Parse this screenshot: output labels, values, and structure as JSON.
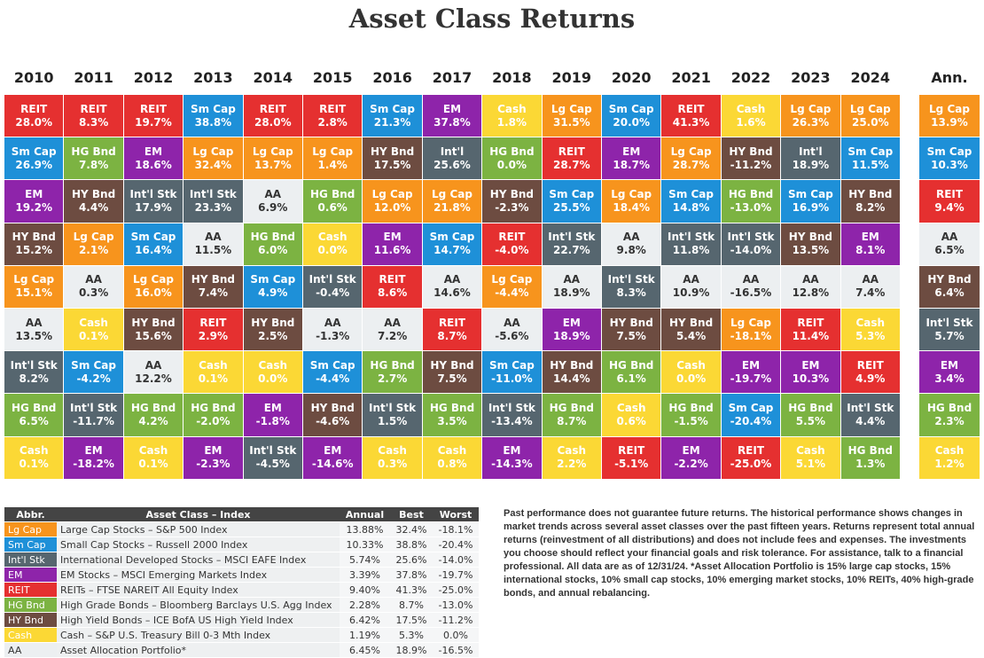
{
  "header": {
    "title": "Asset Class Returns"
  },
  "columns": [
    {
      "year": "2010",
      "cells": [
        {
          "label": "REIT",
          "value": "28.0%"
        },
        {
          "label": "Sm Cap",
          "value": "26.9%"
        },
        {
          "label": "EM",
          "value": "19.2%"
        },
        {
          "label": "HY Bnd",
          "value": "15.2%"
        },
        {
          "label": "Lg Cap",
          "value": "15.1%"
        },
        {
          "label": "AA",
          "value": "13.5%"
        },
        {
          "label": "Int'l Stk",
          "value": "8.2%"
        },
        {
          "label": "HG Bnd",
          "value": "6.5%"
        },
        {
          "label": "Cash",
          "value": "0.1%"
        }
      ]
    },
    {
      "year": "2011",
      "cells": [
        {
          "label": "REIT",
          "value": "8.3%"
        },
        {
          "label": "HG Bnd",
          "value": "7.8%"
        },
        {
          "label": "HY Bnd",
          "value": "4.4%"
        },
        {
          "label": "Lg Cap",
          "value": "2.1%"
        },
        {
          "label": "AA",
          "value": "0.3%"
        },
        {
          "label": "Cash",
          "value": "0.1%"
        },
        {
          "label": "Sm Cap",
          "value": "-4.2%"
        },
        {
          "label": "Int'l Stk",
          "value": "-11.7%"
        },
        {
          "label": "EM",
          "value": "-18.2%"
        }
      ]
    },
    {
      "year": "2012",
      "cells": [
        {
          "label": "REIT",
          "value": "19.7%"
        },
        {
          "label": "EM",
          "value": "18.6%"
        },
        {
          "label": "Int'l Stk",
          "value": "17.9%"
        },
        {
          "label": "Sm Cap",
          "value": "16.4%"
        },
        {
          "label": "Lg Cap",
          "value": "16.0%"
        },
        {
          "label": "HY Bnd",
          "value": "15.6%"
        },
        {
          "label": "AA",
          "value": "12.2%"
        },
        {
          "label": "HG Bnd",
          "value": "4.2%"
        },
        {
          "label": "Cash",
          "value": "0.1%"
        }
      ]
    },
    {
      "year": "2013",
      "cells": [
        {
          "label": "Sm Cap",
          "value": "38.8%"
        },
        {
          "label": "Lg Cap",
          "value": "32.4%"
        },
        {
          "label": "Int'l Stk",
          "value": "23.3%"
        },
        {
          "label": "AA",
          "value": "11.5%"
        },
        {
          "label": "HY Bnd",
          "value": "7.4%"
        },
        {
          "label": "REIT",
          "value": "2.9%"
        },
        {
          "label": "Cash",
          "value": "0.1%"
        },
        {
          "label": "HG Bnd",
          "value": "-2.0%"
        },
        {
          "label": "EM",
          "value": "-2.3%"
        }
      ]
    },
    {
      "year": "2014",
      "cells": [
        {
          "label": "REIT",
          "value": "28.0%"
        },
        {
          "label": "Lg Cap",
          "value": "13.7%"
        },
        {
          "label": "AA",
          "value": "6.9%"
        },
        {
          "label": "HG Bnd",
          "value": "6.0%"
        },
        {
          "label": "Sm Cap",
          "value": "4.9%"
        },
        {
          "label": "HY Bnd",
          "value": "2.5%"
        },
        {
          "label": "Cash",
          "value": "0.0%"
        },
        {
          "label": "EM",
          "value": "-1.8%"
        },
        {
          "label": "Int'l Stk",
          "value": "-4.5%"
        }
      ]
    },
    {
      "year": "2015",
      "cells": [
        {
          "label": "REIT",
          "value": "2.8%"
        },
        {
          "label": "Lg Cap",
          "value": "1.4%"
        },
        {
          "label": "HG Bnd",
          "value": "0.6%"
        },
        {
          "label": "Cash",
          "value": "0.0%"
        },
        {
          "label": "Int'l Stk",
          "value": "-0.4%"
        },
        {
          "label": "AA",
          "value": "-1.3%"
        },
        {
          "label": "Sm Cap",
          "value": "-4.4%"
        },
        {
          "label": "HY Bnd",
          "value": "-4.6%"
        },
        {
          "label": "EM",
          "value": "-14.6%"
        }
      ]
    },
    {
      "year": "2016",
      "cells": [
        {
          "label": "Sm Cap",
          "value": "21.3%"
        },
        {
          "label": "HY Bnd",
          "value": "17.5%"
        },
        {
          "label": "Lg Cap",
          "value": "12.0%"
        },
        {
          "label": "EM",
          "value": "11.6%"
        },
        {
          "label": "REIT",
          "value": "8.6%"
        },
        {
          "label": "AA",
          "value": "7.2%"
        },
        {
          "label": "HG Bnd",
          "value": "2.7%"
        },
        {
          "label": "Int'l Stk",
          "value": "1.5%"
        },
        {
          "label": "Cash",
          "value": "0.3%"
        }
      ]
    },
    {
      "year": "2017",
      "cells": [
        {
          "label": "EM",
          "value": "37.8%"
        },
        {
          "label": "Int'l",
          "value": "25.6%"
        },
        {
          "label": "Lg Cap",
          "value": "21.8%"
        },
        {
          "label": "Sm Cap",
          "value": "14.7%"
        },
        {
          "label": "AA",
          "value": "14.6%"
        },
        {
          "label": "REIT",
          "value": "8.7%"
        },
        {
          "label": "HY Bnd",
          "value": "7.5%"
        },
        {
          "label": "HG Bnd",
          "value": "3.5%"
        },
        {
          "label": "Cash",
          "value": "0.8%"
        }
      ]
    },
    {
      "year": "2018",
      "cells": [
        {
          "label": "Cash",
          "value": "1.8%"
        },
        {
          "label": "HG Bnd",
          "value": "0.0%"
        },
        {
          "label": "HY Bnd",
          "value": "-2.3%"
        },
        {
          "label": "REIT",
          "value": "-4.0%"
        },
        {
          "label": "Lg Cap",
          "value": "-4.4%"
        },
        {
          "label": "AA",
          "value": "-5.6%"
        },
        {
          "label": "Sm Cap",
          "value": "-11.0%"
        },
        {
          "label": "Int'l Stk",
          "value": "-13.4%"
        },
        {
          "label": "EM",
          "value": "-14.3%"
        }
      ]
    },
    {
      "year": "2019",
      "cells": [
        {
          "label": "Lg Cap",
          "value": "31.5%"
        },
        {
          "label": "REIT",
          "value": "28.7%"
        },
        {
          "label": "Sm Cap",
          "value": "25.5%"
        },
        {
          "label": "Int'l Stk",
          "value": "22.7%"
        },
        {
          "label": "AA",
          "value": "18.9%"
        },
        {
          "label": "EM",
          "value": "18.9%"
        },
        {
          "label": "HY Bnd",
          "value": "14.4%"
        },
        {
          "label": "HG Bnd",
          "value": "8.7%"
        },
        {
          "label": "Cash",
          "value": "2.2%"
        }
      ]
    },
    {
      "year": "2020",
      "cells": [
        {
          "label": "Sm Cap",
          "value": "20.0%"
        },
        {
          "label": "EM",
          "value": "18.7%"
        },
        {
          "label": "Lg Cap",
          "value": "18.4%"
        },
        {
          "label": "AA",
          "value": "9.8%"
        },
        {
          "label": "Int'l Stk",
          "value": "8.3%"
        },
        {
          "label": "HY Bnd",
          "value": "7.5%"
        },
        {
          "label": "HG Bnd",
          "value": "6.1%"
        },
        {
          "label": "Cash",
          "value": "0.6%"
        },
        {
          "label": "REIT",
          "value": "-5.1%"
        }
      ]
    },
    {
      "year": "2021",
      "cells": [
        {
          "label": "REIT",
          "value": "41.3%"
        },
        {
          "label": "Lg Cap",
          "value": "28.7%"
        },
        {
          "label": "Sm Cap",
          "value": "14.8%"
        },
        {
          "label": "Int'l Stk",
          "value": "11.8%"
        },
        {
          "label": "AA",
          "value": "10.9%"
        },
        {
          "label": "HY Bnd",
          "value": "5.4%"
        },
        {
          "label": "Cash",
          "value": "0.0%"
        },
        {
          "label": "HG Bnd",
          "value": "-1.5%"
        },
        {
          "label": "EM",
          "value": "-2.2%"
        }
      ]
    },
    {
      "year": "2022",
      "cells": [
        {
          "label": "Cash",
          "value": "1.6%"
        },
        {
          "label": "HY Bnd",
          "value": "-11.2%"
        },
        {
          "label": "HG Bnd",
          "value": "-13.0%"
        },
        {
          "label": "Int'l Stk",
          "value": "-14.0%"
        },
        {
          "label": "AA",
          "value": "-16.5%"
        },
        {
          "label": "Lg Cap",
          "value": "-18.1%"
        },
        {
          "label": "EM",
          "value": "-19.7%"
        },
        {
          "label": "Sm Cap",
          "value": "-20.4%"
        },
        {
          "label": "REIT",
          "value": "-25.0%"
        }
      ]
    },
    {
      "year": "2023",
      "cells": [
        {
          "label": "Lg Cap",
          "value": "26.3%"
        },
        {
          "label": "Int'l",
          "value": "18.9%"
        },
        {
          "label": "Sm Cap",
          "value": "16.9%"
        },
        {
          "label": "HY Bnd",
          "value": "13.5%"
        },
        {
          "label": "AA",
          "value": "12.8%"
        },
        {
          "label": "REIT",
          "value": "11.4%"
        },
        {
          "label": "EM",
          "value": "10.3%"
        },
        {
          "label": "HG Bnd",
          "value": "5.5%"
        },
        {
          "label": "Cash",
          "value": "5.1%"
        }
      ]
    },
    {
      "year": "2024",
      "cells": [
        {
          "label": "Lg Cap",
          "value": "25.0%"
        },
        {
          "label": "Sm Cap",
          "value": "11.5%"
        },
        {
          "label": "HY Bnd",
          "value": "8.2%"
        },
        {
          "label": "EM",
          "value": "8.1%"
        },
        {
          "label": "AA",
          "value": "7.4%"
        },
        {
          "label": "Cash",
          "value": "5.3%"
        },
        {
          "label": "REIT",
          "value": "4.9%"
        },
        {
          "label": "Int'l Stk",
          "value": "4.4%"
        },
        {
          "label": "HG Bnd",
          "value": "1.3%"
        }
      ]
    },
    {
      "year": "Ann.",
      "cells": [
        {
          "label": "Lg Cap",
          "value": "13.9%"
        },
        {
          "label": "Sm Cap",
          "value": "10.3%"
        },
        {
          "label": "REIT",
          "value": "9.4%"
        },
        {
          "label": "AA",
          "value": "6.5%"
        },
        {
          "label": "HY Bnd",
          "value": "6.4%"
        },
        {
          "label": "Int'l Stk",
          "value": "5.7%"
        },
        {
          "label": "EM",
          "value": "3.4%"
        },
        {
          "label": "HG Bnd",
          "value": "2.3%"
        },
        {
          "label": "Cash",
          "value": "1.2%"
        }
      ]
    }
  ],
  "legend": {
    "headers": [
      "Abbr.",
      "Asset Class – Index",
      "Annual",
      "Best",
      "Worst"
    ],
    "rows": [
      {
        "abbr": "Lg Cap",
        "name": "Large Cap Stocks – S&P 500 Index",
        "annual": "13.88%",
        "best": "32.4%",
        "worst": "-18.1%",
        "color": "#f7941d",
        "text_color": "#ffffff"
      },
      {
        "abbr": "Sm Cap",
        "name": "Small Cap Stocks – Russell 2000 Index",
        "annual": "10.33%",
        "best": "38.8%",
        "worst": "-20.4%",
        "color": "#1e90d8",
        "text_color": "#ffffff"
      },
      {
        "abbr": "Int'l Stk",
        "name": "International Developed Stocks – MSCI EAFE Index",
        "annual": "5.74%",
        "best": "25.6%",
        "worst": "-14.0%",
        "color": "#56666f",
        "text_color": "#ffffff"
      },
      {
        "abbr": "EM",
        "name": "EM Stocks – MSCI Emerging Markets Index",
        "annual": "3.39%",
        "best": "37.8%",
        "worst": "-19.7%",
        "color": "#8e24aa",
        "text_color": "#ffffff"
      },
      {
        "abbr": "REIT",
        "name": "REITs – FTSE NAREIT All Equity Index",
        "annual": "9.40%",
        "best": "41.3%",
        "worst": "-25.0%",
        "color": "#e53030",
        "text_color": "#ffffff"
      },
      {
        "abbr": "HG Bnd",
        "name": "High Grade Bonds – Bloomberg Barclays U.S. Agg Index",
        "annual": "2.28%",
        "best": "8.7%",
        "worst": "-13.0%",
        "color": "#7cb342",
        "text_color": "#ffffff"
      },
      {
        "abbr": "HY Bnd",
        "name": "High Yield Bonds – ICE BofA US High Yield Index",
        "annual": "6.42%",
        "best": "17.5%",
        "worst": "-11.2%",
        "color": "#6d4c41",
        "text_color": "#ffffff"
      },
      {
        "abbr": "Cash",
        "name": "Cash – S&P U.S. Treasury Bill 0-3 Mth Index",
        "annual": "1.19%",
        "best": "5.3%",
        "worst": "0.0%",
        "color": "#fbd835",
        "text_color": "#ffffff"
      },
      {
        "abbr": "AA",
        "name": "Asset Allocation Portfolio*",
        "annual": "6.45%",
        "best": "18.9%",
        "worst": "-16.5%",
        "color": "#eceff1",
        "text_color": "#333333"
      }
    ]
  },
  "note": "Past performance does not guarantee future returns. The historical performance shows changes in market trends across several asset classes over the past fifteen years. Returns represent total annual returns (reinvestment of all distributions) and does not include fees and expenses. The investments you choose should reflect your financial goals and risk tolerance. For assistance, talk to a financial professional. All data are as of 12/31/24. *Asset Allocation Portfolio is 15% large cap stocks, 15% international stocks, 10% small cap stocks, 10% emerging market stocks, 10% REITs, 40% high-grade bonds, and annual rebalancing."
}
